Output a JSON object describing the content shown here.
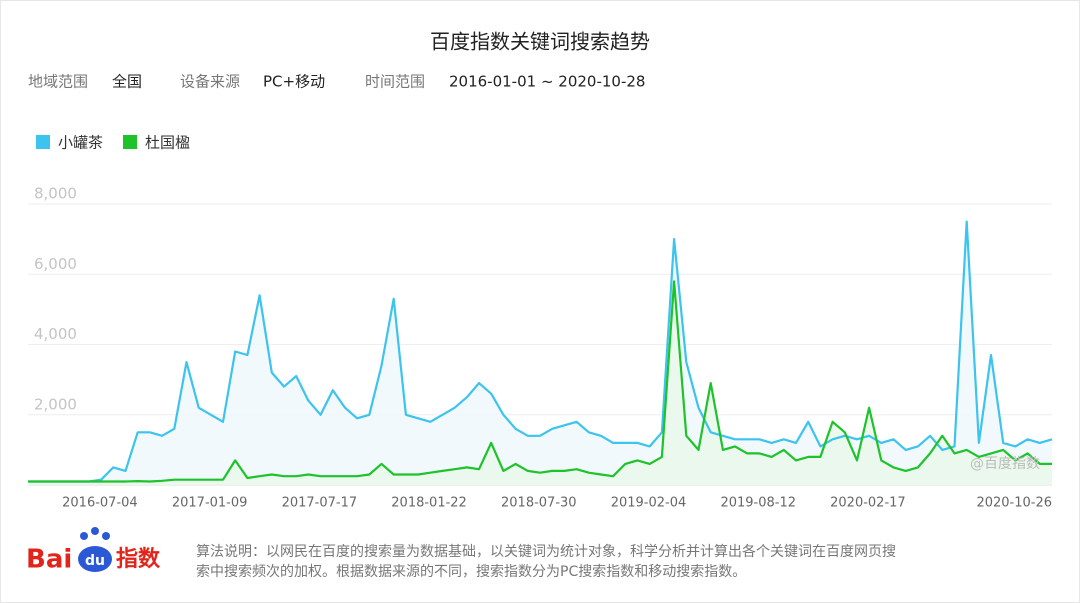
{
  "chart_data": {
    "type": "line",
    "title": "百度指数关键词搜索趋势",
    "categories": [
      null,
      null,
      null,
      null,
      null,
      null,
      null,
      null,
      null,
      "2016-07-04",
      null,
      null,
      null,
      null,
      null,
      null,
      null,
      null,
      "2017-01-09",
      null,
      null,
      null,
      null,
      null,
      null,
      null,
      null,
      "2017-07-17",
      null,
      null,
      null,
      null,
      null,
      null,
      null,
      null,
      "2018-01-22",
      null,
      null,
      null,
      null,
      null,
      null,
      null,
      null,
      "2018-07-30",
      null,
      null,
      null,
      null,
      null,
      null,
      null,
      null,
      "2019-02-04",
      null,
      null,
      null,
      null,
      null,
      null,
      null,
      null,
      "2019-08-12",
      null,
      null,
      null,
      null,
      null,
      null,
      null,
      null,
      "2020-02-17",
      null,
      null,
      null,
      null,
      null,
      null,
      null,
      null,
      null,
      null,
      null,
      "2020-10-26"
    ],
    "series": [
      {
        "name": "小罐茶",
        "color": "#3cc3ee",
        "fill": "#eef8fc",
        "values": [
          100,
          100,
          100,
          100,
          100,
          100,
          150,
          500,
          400,
          1500,
          1500,
          1400,
          1600,
          3500,
          2200,
          2000,
          1800,
          3800,
          3700,
          5400,
          3200,
          2800,
          3100,
          2400,
          2000,
          2700,
          2200,
          1900,
          2000,
          3400,
          5300,
          2000,
          1900,
          1800,
          2000,
          2200,
          2500,
          2900,
          2600,
          2000,
          1600,
          1400,
          1400,
          1600,
          1700,
          1800,
          1500,
          1400,
          1200,
          1200,
          1200,
          1100,
          1500,
          7000,
          3500,
          2200,
          1500,
          1400,
          1300,
          1300,
          1300,
          1200,
          1300,
          1200,
          1800,
          1100,
          1300,
          1400,
          1300,
          1400,
          1200,
          1300,
          1000,
          1100,
          1400,
          1000,
          1100,
          7500,
          1200,
          3700,
          1200,
          1100,
          1300,
          1200,
          1300
        ]
      },
      {
        "name": "杜国楹",
        "color": "#1ec22a",
        "fill": "#e9f8ea",
        "values": [
          100,
          100,
          100,
          100,
          100,
          100,
          100,
          100,
          100,
          110,
          100,
          120,
          150,
          150,
          150,
          150,
          150,
          700,
          200,
          250,
          300,
          250,
          250,
          300,
          250,
          250,
          250,
          250,
          300,
          600,
          300,
          300,
          300,
          350,
          400,
          450,
          500,
          450,
          1200,
          400,
          600,
          400,
          350,
          400,
          400,
          450,
          350,
          300,
          250,
          600,
          700,
          600,
          800,
          5800,
          1400,
          1000,
          2900,
          1000,
          1100,
          900,
          900,
          800,
          1000,
          700,
          800,
          800,
          1800,
          1500,
          700,
          2200,
          700,
          500,
          400,
          500,
          900,
          1400,
          900,
          1000,
          800,
          900,
          1000,
          700,
          900,
          600,
          600
        ]
      }
    ],
    "ylim": [
      0,
      8000
    ],
    "yticks": [
      {
        "value": 2000,
        "label": "2,000"
      },
      {
        "value": 4000,
        "label": "4,000"
      },
      {
        "value": 6000,
        "label": "6,000"
      },
      {
        "value": 8000,
        "label": "8,000"
      }
    ],
    "grid": true,
    "watermark": "@百度指数"
  },
  "filters": [
    {
      "label": "地域范围",
      "value": "全国"
    },
    {
      "label": "设备来源",
      "value": "PC+移动"
    },
    {
      "label": "时间范围",
      "value": "2016-01-01 ~ 2020-10-28"
    }
  ],
  "logo": {
    "left": "Bai",
    "mid": "du",
    "right": "指数"
  },
  "footnote": [
    "算法说明：以网民在百度的搜索量为数据基础，以关键词为统计对象，科学分析并计算出各个关键词在百度网页搜",
    "索中搜索频次的加权。根据数据来源的不同，搜索指数分为PC搜索指数和移动搜索指数。"
  ]
}
